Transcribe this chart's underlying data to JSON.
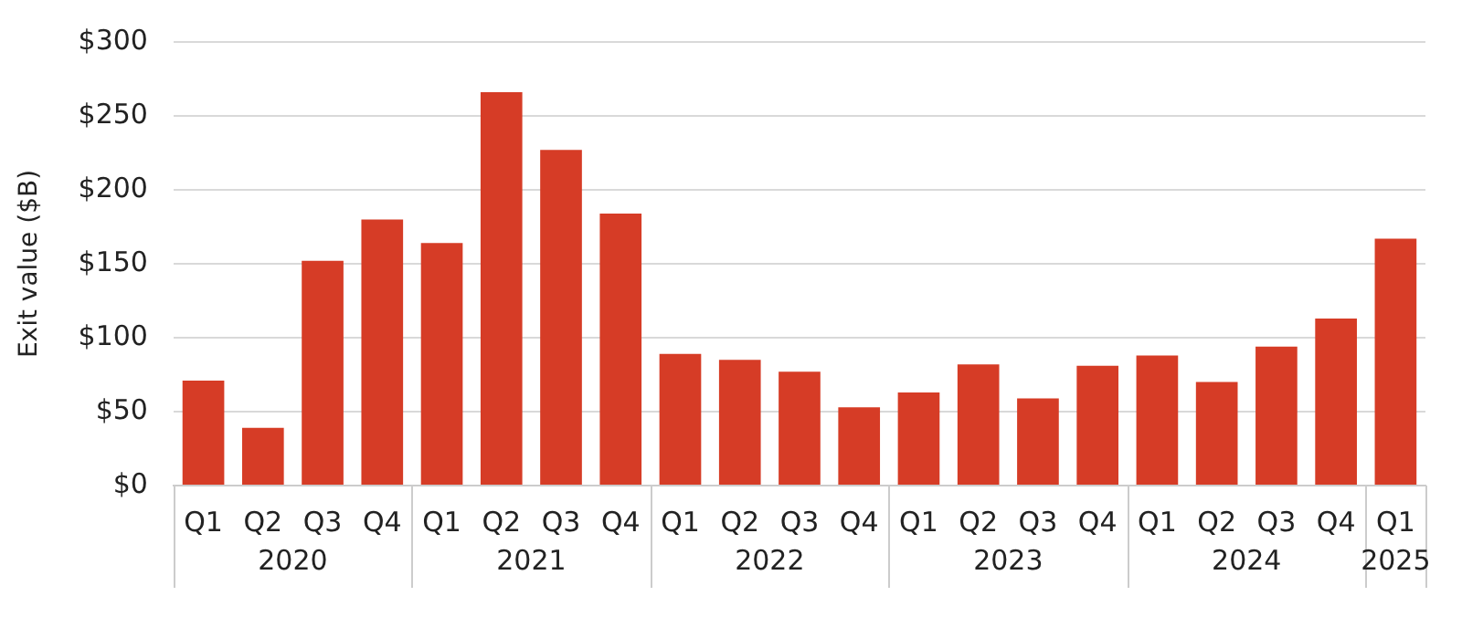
{
  "chart_data": {
    "type": "bar",
    "ylabel": "Exit value ($B)",
    "categories": [
      "Q1",
      "Q2",
      "Q3",
      "Q4",
      "Q1",
      "Q2",
      "Q3",
      "Q4",
      "Q1",
      "Q2",
      "Q3",
      "Q4",
      "Q1",
      "Q2",
      "Q3",
      "Q4",
      "Q1",
      "Q2",
      "Q3",
      "Q4",
      "Q1"
    ],
    "values": [
      71,
      39,
      152,
      180,
      164,
      266,
      227,
      184,
      89,
      85,
      77,
      53,
      63,
      82,
      59,
      81,
      88,
      70,
      94,
      113,
      167
    ],
    "color": "#d63c26",
    "ylim": [
      0,
      300
    ],
    "yticks": [
      {
        "value": 0,
        "label": "$0"
      },
      {
        "value": 50,
        "label": "$50"
      },
      {
        "value": 100,
        "label": "$100"
      },
      {
        "value": 150,
        "label": "$150"
      },
      {
        "value": 200,
        "label": "$200"
      },
      {
        "value": 250,
        "label": "$250"
      },
      {
        "value": 300,
        "label": "$300"
      }
    ],
    "grid": "y",
    "legend": false,
    "annotations": [
      "2020",
      "2021",
      "2022",
      "2023",
      "2024",
      "2025"
    ]
  }
}
